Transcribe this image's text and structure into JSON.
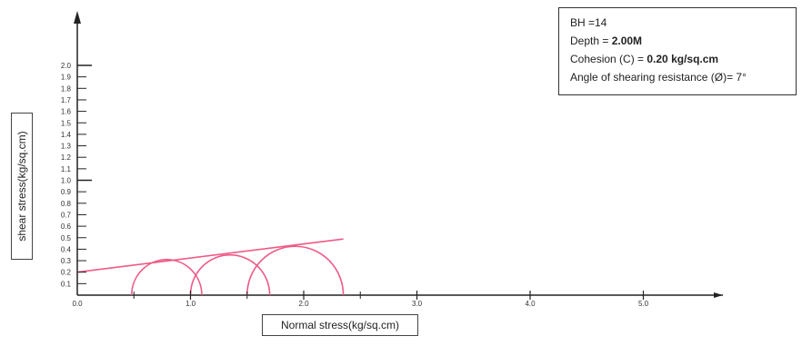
{
  "info": {
    "bh_label": "BH =14",
    "depth_label": "Depth = ",
    "depth_value": "2.00M",
    "cohesion_label": "Cohesion (C) = ",
    "cohesion_value": "0.20 kg/sq.cm",
    "angle_label": "Angle of shearing resistance (Ø)= 7°"
  },
  "colors": {
    "envelope": "#ee5a86",
    "axis": "#222222"
  },
  "chart_data": {
    "type": "mohr-circle",
    "xlabel": "Normal stress(kg/sq.cm)",
    "ylabel": "shear stress(kg/sq.cm)",
    "xlim": [
      0,
      5.8
    ],
    "ylim": [
      0,
      2.0
    ],
    "x_ticks": [
      0.0,
      1.0,
      2.0,
      3.0,
      4.0,
      5.0
    ],
    "x_tick_labels": [
      "0.0",
      "1.0",
      "2.0",
      "3.0",
      "4.0",
      "5.0"
    ],
    "y_ticks": [
      0.1,
      0.2,
      0.3,
      0.4,
      0.5,
      0.6,
      0.7,
      0.8,
      0.9,
      1.0,
      1.1,
      1.2,
      1.3,
      1.4,
      1.5,
      1.6,
      1.7,
      1.8,
      1.9,
      2.0
    ],
    "y_tick_labels": [
      "0.1",
      "0.2",
      "0.3",
      "0.4",
      "0.5",
      "0.6",
      "0.7",
      "0.8",
      "0.9",
      "1.0",
      "1.1",
      "1.2",
      "1.3",
      "1.4",
      "1.5",
      "1.6",
      "1.7",
      "1.8",
      "1.9",
      "2.0"
    ],
    "circles": [
      {
        "sigma3": 0.48,
        "sigma1": 1.1
      },
      {
        "sigma3": 1.0,
        "sigma1": 1.7
      },
      {
        "sigma3": 1.5,
        "sigma1": 2.35
      }
    ],
    "envelope": {
      "cohesion": 0.2,
      "phi_deg": 7,
      "x_start": 0.0,
      "x_end": 2.35
    },
    "grid": false
  }
}
